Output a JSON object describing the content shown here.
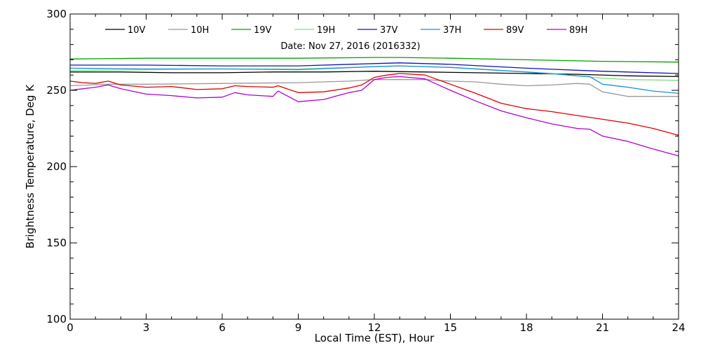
{
  "chart_data": {
    "type": "line",
    "title": "",
    "annotation": "Date: Nov 27, 2016 (2016332)",
    "xlabel": "Local Time (EST), Hour",
    "ylabel": "Brightness Temperature, Deg K",
    "xlim": [
      0,
      24
    ],
    "ylim": [
      100,
      300
    ],
    "xticks": [
      0,
      3,
      6,
      9,
      12,
      15,
      18,
      21,
      24
    ],
    "xtick_labels": [
      "0",
      "3",
      "6",
      "9",
      "12",
      "15",
      "18",
      "21",
      "24"
    ],
    "yticks": [
      100,
      150,
      200,
      250,
      300
    ],
    "ytick_labels": [
      "100",
      "150",
      "200",
      "250",
      "300"
    ],
    "grid": false,
    "legend_position": "top",
    "series": [
      {
        "name": "10V",
        "color": "#000000",
        "points": [
          [
            0,
            262
          ],
          [
            2,
            262
          ],
          [
            4,
            261.5
          ],
          [
            6,
            261.5
          ],
          [
            8,
            262
          ],
          [
            10,
            262
          ],
          [
            12,
            262.5
          ],
          [
            14,
            262
          ],
          [
            16,
            261.5
          ],
          [
            18,
            261
          ],
          [
            20,
            260.5
          ],
          [
            22,
            259.5
          ],
          [
            24,
            259
          ]
        ]
      },
      {
        "name": "10H",
        "color": "#999999",
        "points": [
          [
            0,
            253
          ],
          [
            1.5,
            254
          ],
          [
            3,
            254
          ],
          [
            6,
            254.5
          ],
          [
            9,
            255
          ],
          [
            11,
            256
          ],
          [
            12,
            257
          ],
          [
            13,
            257
          ],
          [
            14,
            257
          ],
          [
            15,
            256
          ],
          [
            16,
            255.5
          ],
          [
            17,
            254
          ],
          [
            18,
            253
          ],
          [
            19,
            253.5
          ],
          [
            20,
            254.5
          ],
          [
            20.5,
            254
          ],
          [
            21,
            249
          ],
          [
            22,
            246
          ],
          [
            24,
            246
          ]
        ]
      },
      {
        "name": "19V",
        "color": "#00a000",
        "points": [
          [
            0,
            270.5
          ],
          [
            3,
            271
          ],
          [
            6,
            271
          ],
          [
            9,
            271
          ],
          [
            12,
            271.5
          ],
          [
            13,
            271.5
          ],
          [
            15,
            271
          ],
          [
            18,
            270
          ],
          [
            21,
            269
          ],
          [
            24,
            268.5
          ]
        ]
      },
      {
        "name": "19H",
        "color": "#80e080",
        "points": [
          [
            0,
            263
          ],
          [
            3,
            263.5
          ],
          [
            6,
            264
          ],
          [
            9,
            264
          ],
          [
            12,
            265.5
          ],
          [
            13,
            266
          ],
          [
            15,
            265
          ],
          [
            18,
            262
          ],
          [
            20,
            259.5
          ],
          [
            21,
            258
          ],
          [
            22,
            257
          ],
          [
            24,
            256.5
          ]
        ]
      },
      {
        "name": "37V",
        "color": "#1010c0",
        "points": [
          [
            0,
            266.5
          ],
          [
            3,
            266.5
          ],
          [
            6,
            266
          ],
          [
            9,
            266
          ],
          [
            12,
            267.5
          ],
          [
            13,
            268
          ],
          [
            15,
            267
          ],
          [
            18,
            264.5
          ],
          [
            21,
            262.5
          ],
          [
            24,
            261
          ]
        ]
      },
      {
        "name": "37H",
        "color": "#1e90d8",
        "points": [
          [
            0,
            264.5
          ],
          [
            3,
            264
          ],
          [
            6,
            264
          ],
          [
            9,
            263.5
          ],
          [
            12,
            265.5
          ],
          [
            13,
            266
          ],
          [
            15,
            265
          ],
          [
            17,
            263
          ],
          [
            19,
            261
          ],
          [
            20,
            259.5
          ],
          [
            20.5,
            259
          ],
          [
            21,
            254
          ],
          [
            22,
            252
          ],
          [
            23,
            249.5
          ],
          [
            24,
            248
          ]
        ]
      },
      {
        "name": "89V",
        "color": "#e00000",
        "points": [
          [
            0,
            256
          ],
          [
            0.5,
            255
          ],
          [
            1,
            254.5
          ],
          [
            1.5,
            256
          ],
          [
            2,
            253.5
          ],
          [
            3,
            252
          ],
          [
            4,
            252.5
          ],
          [
            5,
            250.5
          ],
          [
            6,
            251
          ],
          [
            6.5,
            253
          ],
          [
            7,
            252.5
          ],
          [
            8,
            252
          ],
          [
            8.2,
            253
          ],
          [
            9,
            248.5
          ],
          [
            10,
            249
          ],
          [
            11,
            251.5
          ],
          [
            11.5,
            253.5
          ],
          [
            12,
            258.5
          ],
          [
            12.5,
            260
          ],
          [
            13,
            261
          ],
          [
            14,
            260
          ],
          [
            15,
            254
          ],
          [
            16,
            248
          ],
          [
            17,
            241.5
          ],
          [
            18,
            238
          ],
          [
            19,
            236
          ],
          [
            20,
            233.5
          ],
          [
            21,
            231
          ],
          [
            22,
            228.5
          ],
          [
            23,
            225
          ],
          [
            24,
            220.5
          ]
        ]
      },
      {
        "name": "89H",
        "color": "#b000d0",
        "points": [
          [
            0,
            250
          ],
          [
            0.5,
            251
          ],
          [
            1,
            252
          ],
          [
            1.5,
            253.5
          ],
          [
            2,
            251
          ],
          [
            3,
            247.5
          ],
          [
            4,
            246.5
          ],
          [
            5,
            245
          ],
          [
            6,
            245.5
          ],
          [
            6.5,
            248.5
          ],
          [
            7,
            247
          ],
          [
            8,
            246
          ],
          [
            8.2,
            249.5
          ],
          [
            9,
            242.5
          ],
          [
            10,
            244
          ],
          [
            11,
            248.5
          ],
          [
            11.5,
            250
          ],
          [
            12,
            257
          ],
          [
            12.5,
            258.5
          ],
          [
            13,
            259
          ],
          [
            14,
            257.5
          ],
          [
            15,
            250
          ],
          [
            16,
            243
          ],
          [
            17,
            236.5
          ],
          [
            18,
            232
          ],
          [
            19,
            228
          ],
          [
            20,
            225
          ],
          [
            20.5,
            224.5
          ],
          [
            21,
            220
          ],
          [
            22,
            216.5
          ],
          [
            23,
            211.5
          ],
          [
            24,
            207
          ]
        ]
      }
    ]
  }
}
